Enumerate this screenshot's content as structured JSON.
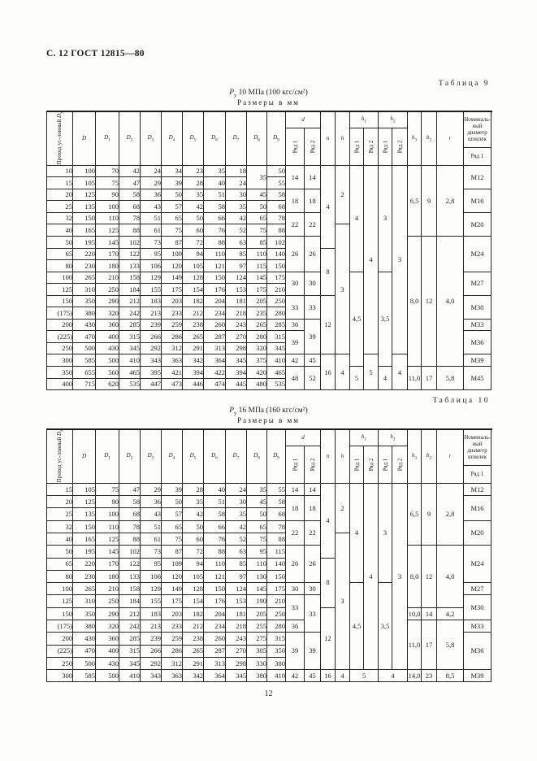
{
  "page": {
    "header": "С. 12 ГОСТ 12815—80",
    "page_number": "12"
  },
  "table_header": {
    "dy_line1": "Проход ус-",
    "dy_line2": "ловный ",
    "dy_base": "D",
    "dy_sub": "у",
    "d_cols": [
      {
        "b": "D",
        "s": ""
      },
      {
        "b": "D",
        "s": "1"
      },
      {
        "b": "D",
        "s": "2"
      },
      {
        "b": "D",
        "s": "3"
      },
      {
        "b": "D",
        "s": "4"
      },
      {
        "b": "D",
        "s": "5"
      },
      {
        "b": "D",
        "s": "6"
      },
      {
        "b": "D",
        "s": "7"
      },
      {
        "b": "D",
        "s": "8"
      },
      {
        "b": "D",
        "s": "9"
      }
    ],
    "d": {
      "b": "d",
      "s": ""
    },
    "n": {
      "b": "n",
      "s": ""
    },
    "h": {
      "b": "h",
      "s": ""
    },
    "h1": {
      "b": "h",
      "s": "1"
    },
    "h2": {
      "b": "h",
      "s": "2"
    },
    "h3": {
      "b": "h",
      "s": "3"
    },
    "b2": {
      "b": "b",
      "s": "2"
    },
    "r": {
      "b": "r",
      "s": ""
    },
    "ryad1": "Ряд 1",
    "ryad2": "Ряд 2",
    "studs_lines": [
      "Номиналь-",
      "ный диаметр",
      "шпилек"
    ]
  },
  "columns_order": [
    "dy",
    "D",
    "D1",
    "D2",
    "D3",
    "D4",
    "D5",
    "D6",
    "D7",
    "D8",
    "D9",
    "d1",
    "d2",
    "n",
    "h",
    "h1r1",
    "h1r2",
    "h2r1",
    "h2r2",
    "h3",
    "b2",
    "r",
    "m1",
    "m2"
  ],
  "tables": [
    {
      "caption": "Таблица 9",
      "p_sym": "P",
      "p_sub": "у",
      "p_text": "10  МПа (100 кгс/см²)",
      "units": "Размеры в мм",
      "columns": {
        "dy": [
          "10",
          "15",
          "20",
          "25",
          "32",
          "40",
          "50",
          "65",
          "80",
          "100",
          "125",
          "150",
          "(175)",
          "200",
          "(225)",
          "250",
          "300",
          "350",
          "400"
        ],
        "D": [
          "100",
          "105",
          "125",
          "135",
          "150",
          "165",
          "195",
          "220",
          "230",
          "265",
          "310",
          "350",
          "380",
          "430",
          "470",
          "500",
          "585",
          "655",
          "715"
        ],
        "D1": [
          "70",
          "75",
          "90",
          "100",
          "110",
          "125",
          "145",
          "170",
          "180",
          "210",
          "250",
          "290",
          "320",
          "360",
          "400",
          "430",
          "500",
          "560",
          "620"
        ],
        "D2": [
          "42",
          "47",
          "58",
          "68",
          "78",
          "88",
          "102",
          "122",
          "133",
          "158",
          "184",
          "212",
          "242",
          "285",
          "315",
          "345",
          "410",
          "465",
          "535"
        ],
        "D3": [
          "24",
          "29",
          "36",
          "43",
          "51",
          "61",
          "73",
          "95",
          "106",
          "129",
          "155",
          "183",
          "213",
          "239",
          "266",
          "292",
          "343",
          "395",
          "447"
        ],
        "D4": [
          "34",
          "39",
          "50",
          "57",
          "65",
          "75",
          "87",
          "109",
          "120",
          "149",
          "175",
          "203",
          "233",
          "259",
          "286",
          "312",
          "363",
          "421",
          "473"
        ],
        "D5": [
          "23",
          "28",
          "35",
          "42",
          "50",
          "60",
          "72",
          "94",
          "105",
          "128",
          "154",
          "182",
          "212",
          "238",
          "265",
          "291",
          "342",
          "394",
          "446"
        ],
        "D6": [
          "35",
          "40",
          "51",
          "58",
          "66",
          "76",
          "88",
          "110",
          "121",
          "150",
          "176",
          "204",
          "234",
          "260",
          "287",
          "313",
          "364",
          "422",
          "474"
        ],
        "D7": [
          "18",
          "24",
          "30",
          "35",
          "42",
          "52",
          "63",
          "85",
          "97",
          "124",
          "153",
          "181",
          "218",
          "243",
          "270",
          "298",
          "345",
          "394",
          "445"
        ],
        "D8": [
          {
            "v": "35",
            "s": 2
          },
          "45",
          "50",
          "65",
          "75",
          "85",
          "110",
          "115",
          "145",
          "175",
          "205",
          "235",
          "265",
          "280",
          "320",
          "375",
          "420",
          "480"
        ],
        "D9": [
          "50",
          "55",
          "58",
          "68",
          "78",
          "88",
          "102",
          "140",
          "150",
          "175",
          "210",
          "250",
          "280",
          "285",
          "315",
          "345",
          "410",
          "465",
          "535"
        ],
        "d1": [
          {
            "v": "14",
            "s": 2
          },
          {
            "v": "18",
            "s": 2
          },
          {
            "v": "22",
            "s": 2
          },
          {
            "v": "26",
            "s": 3
          },
          {
            "v": "30",
            "s": 2
          },
          {
            "v": "33",
            "s": 2
          },
          "36",
          {
            "v": "39",
            "s": 2
          },
          "42",
          {
            "v": "48",
            "s": 2
          }
        ],
        "d2": [
          {
            "v": "14",
            "s": 2
          },
          {
            "v": "18",
            "s": 2
          },
          {
            "v": "22",
            "s": 2
          },
          {
            "v": "26",
            "s": 3
          },
          {
            "v": "30",
            "s": 2
          },
          {
            "v": "33",
            "s": 2
          },
          {
            "v": "39",
            "s": 3
          },
          "45",
          {
            "v": "52",
            "s": 2
          }
        ],
        "n": [
          {
            "v": "4",
            "s": 7
          },
          {
            "v": "8",
            "s": 4
          },
          {
            "v": "12",
            "s": 5
          },
          {
            "v": "16",
            "s": 3
          }
        ],
        "h": [
          {
            "v": "2",
            "s": 5
          },
          {
            "v": "3",
            "s": 11
          },
          {
            "v": "4",
            "s": 3
          }
        ],
        "h1r1": [
          {
            "v": "4",
            "s": 9
          },
          {
            "v": "4,5",
            "s": 8
          },
          {
            "v": "5",
            "s": 2
          }
        ],
        "h1r2": [
          {
            "v": "4",
            "s": 16
          },
          {
            "v": "5",
            "s": 3
          }
        ],
        "h2r1": [
          {
            "v": "3",
            "s": 9
          },
          {
            "v": "3,5",
            "s": 8
          },
          {
            "v": "4",
            "s": 2
          }
        ],
        "h2r2": [
          {
            "v": "3",
            "s": 16
          },
          {
            "v": "4",
            "s": 3
          }
        ],
        "h3": [
          {
            "v": "6,5",
            "s": 6
          },
          {
            "v": "8,0",
            "s": 11
          },
          {
            "v": "11,0",
            "s": 2
          }
        ],
        "b2": [
          {
            "v": "9",
            "s": 6
          },
          {
            "v": "12",
            "s": 11
          },
          {
            "v": "17",
            "s": 2
          }
        ],
        "r": [
          {
            "v": "2,8",
            "s": 6
          },
          {
            "v": "4,0",
            "s": 11
          },
          {
            "v": "5,8",
            "s": 2
          }
        ],
        "m1": [
          {
            "v": "М12",
            "s": 2
          },
          {
            "v": "М16",
            "s": 2
          },
          {
            "v": "М20",
            "s": 2
          },
          {
            "v": "М24",
            "s": 3
          },
          {
            "v": "М27",
            "s": 2
          },
          {
            "v": "М30",
            "s": 2
          },
          "М33",
          {
            "v": "М36",
            "s": 2
          },
          "М39",
          {
            "v": "М45",
            "s": 2
          }
        ],
        "m2": [
          {
            "v": "М12",
            "s": 2
          },
          {
            "v": "М16",
            "s": 2
          },
          {
            "v": "М20",
            "s": 2
          },
          {
            "v": "М24",
            "s": 3
          },
          {
            "v": "М27",
            "s": 2
          },
          {
            "v": "М30",
            "s": 2
          },
          {
            "v": "М36",
            "s": 3
          },
          "М42",
          {
            "v": "М48",
            "s": 2
          }
        ]
      }
    },
    {
      "caption": "Таблица 10",
      "p_sym": "P",
      "p_sub": "у",
      "p_text": "16  МПа (160 кгс/см²)",
      "units": "Размеры в мм",
      "columns": {
        "dy": [
          "15",
          "20",
          "25",
          "32",
          "40",
          "50",
          "65",
          "80",
          "100",
          "125",
          "150",
          "(175)",
          "200",
          "(225)",
          "250",
          "300"
        ],
        "D": [
          "105",
          "125",
          "135",
          "150",
          "165",
          "195",
          "220",
          "230",
          "265",
          "310",
          "350",
          "380",
          "430",
          "470",
          "500",
          "585"
        ],
        "D1": [
          "75",
          "90",
          "100",
          "110",
          "125",
          "145",
          "170",
          "180",
          "210",
          "250",
          "290",
          "320",
          "360",
          "400",
          "430",
          "500"
        ],
        "D2": [
          "47",
          "58",
          "68",
          "78",
          "88",
          "102",
          "122",
          "133",
          "158",
          "184",
          "212",
          "242",
          "285",
          "315",
          "345",
          "410"
        ],
        "D3": [
          "29",
          "36",
          "43",
          "51",
          "61",
          "73",
          "95",
          "106",
          "129",
          "155",
          "183",
          "213",
          "239",
          "266",
          "292",
          "343"
        ],
        "D4": [
          "39",
          "50",
          "57",
          "65",
          "75",
          "87",
          "109",
          "120",
          "149",
          "175",
          "203",
          "233",
          "259",
          "286",
          "312",
          "363"
        ],
        "D5": [
          "28",
          "35",
          "42",
          "50",
          "60",
          "72",
          "94",
          "105",
          "128",
          "154",
          "182",
          "212",
          "238",
          "265",
          "291",
          "342"
        ],
        "D6": [
          "40",
          "51",
          "58",
          "66",
          "76",
          "88",
          "110",
          "121",
          "150",
          "176",
          "204",
          "234",
          "260",
          "287",
          "313",
          "364"
        ],
        "D7": [
          "24",
          "30",
          "35",
          "42",
          "52",
          "63",
          "85",
          "97",
          "124",
          "153",
          "181",
          "218",
          "243",
          "270",
          "298",
          "345"
        ],
        "D8": [
          "35",
          "45",
          "50",
          "65",
          "75",
          "95",
          "110",
          "130",
          "145",
          "190",
          "205",
          "255",
          "275",
          "305",
          "330",
          "380"
        ],
        "D9": [
          "55",
          "58",
          "68",
          "78",
          "88",
          "115",
          "140",
          "150",
          "175",
          "210",
          "250",
          "280",
          "315",
          "350",
          "380",
          "410"
        ],
        "d1": [
          "14",
          {
            "v": "18",
            "s": 2
          },
          {
            "v": "22",
            "s": 2
          },
          {
            "v": "26",
            "s": 3
          },
          "30",
          {
            "v": "33",
            "s": 2
          },
          "36",
          {
            "v": "39",
            "s": 3
          },
          "42"
        ],
        "d2": [
          "14",
          {
            "v": "18",
            "s": 2
          },
          {
            "v": "22",
            "s": 2
          },
          {
            "v": "26",
            "s": 3
          },
          "30",
          {
            "v": "33",
            "s": 3
          },
          {
            "v": "39",
            "s": 3
          },
          "45"
        ],
        "n": [
          {
            "v": "4",
            "s": 6
          },
          {
            "v": "8",
            "s": 4
          },
          {
            "v": "12",
            "s": 5
          },
          "16"
        ],
        "h": [
          {
            "v": "2",
            "s": 4
          },
          {
            "v": "3",
            "s": 11
          },
          "4"
        ],
        "h1r1": [
          {
            "v": "4",
            "s": 8
          },
          {
            "v": "4,5",
            "s": 7
          },
          {
            "v": "5",
            "s": 1,
            "c": 2
          }
        ],
        "h1r2": [
          {
            "v": "4",
            "s": 15
          }
        ],
        "h2r1": [
          {
            "v": "3",
            "s": 8
          },
          {
            "v": "3,5",
            "s": 7
          },
          {
            "v": "4",
            "s": 1,
            "c": 2
          }
        ],
        "h2r2": [
          {
            "v": "3",
            "s": 15
          }
        ],
        "h3": [
          {
            "v": "6,5",
            "s": 5
          },
          {
            "v": "8,0",
            "s": 5
          },
          "10,0",
          {
            "v": "11,0",
            "s": 4
          },
          "14,0"
        ],
        "b2": [
          {
            "v": "9",
            "s": 5
          },
          {
            "v": "12",
            "s": 5
          },
          "14",
          {
            "v": "17",
            "s": 4
          },
          "23"
        ],
        "r": [
          {
            "v": "2,8",
            "s": 5
          },
          {
            "v": "4,0",
            "s": 5
          },
          "4,2",
          {
            "v": "5,8",
            "s": 4
          },
          "8,5"
        ],
        "m1": [
          "М12",
          {
            "v": "М16",
            "s": 2
          },
          {
            "v": "М20",
            "s": 2
          },
          {
            "v": "М24",
            "s": 3
          },
          "М27",
          {
            "v": "М30",
            "s": 2
          },
          "М33",
          {
            "v": "М36",
            "s": 3
          },
          "М39"
        ],
        "m2": [
          "М12",
          {
            "v": "М16",
            "s": 2
          },
          {
            "v": "М20",
            "s": 2
          },
          {
            "v": "М24",
            "s": 3
          },
          "М27",
          {
            "v": "М30",
            "s": 3
          },
          {
            "v": "М36",
            "s": 3
          },
          "М42"
        ]
      }
    }
  ]
}
